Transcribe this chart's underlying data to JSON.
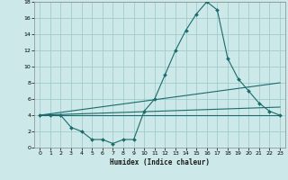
{
  "title": "",
  "xlabel": "Humidex (Indice chaleur)",
  "bg_color": "#cce8e8",
  "grid_color": "#a0cccc",
  "line_color": "#1a6b6b",
  "xlim": [
    -0.5,
    23.5
  ],
  "ylim": [
    0,
    18
  ],
  "xticks": [
    0,
    1,
    2,
    3,
    4,
    5,
    6,
    7,
    8,
    9,
    10,
    11,
    12,
    13,
    14,
    15,
    16,
    17,
    18,
    19,
    20,
    21,
    22,
    23
  ],
  "yticks": [
    0,
    2,
    4,
    6,
    8,
    10,
    12,
    14,
    16,
    18
  ],
  "line1_x": [
    0,
    1,
    2,
    3,
    4,
    5,
    6,
    7,
    8,
    9,
    10,
    11,
    12,
    13,
    14,
    15,
    16,
    17,
    18,
    19,
    20,
    21,
    22,
    23
  ],
  "line1_y": [
    4,
    4,
    4,
    2.5,
    2,
    1,
    1,
    0.5,
    1,
    1,
    4.5,
    6,
    9,
    12,
    14.5,
    16.5,
    18,
    17,
    11,
    8.5,
    7,
    5.5,
    4.5,
    4
  ],
  "line2_x": [
    0,
    23
  ],
  "line2_y": [
    4,
    8
  ],
  "line3_x": [
    0,
    23
  ],
  "line3_y": [
    4,
    5.0
  ],
  "line4_x": [
    0,
    23
  ],
  "line4_y": [
    4,
    4.0
  ]
}
